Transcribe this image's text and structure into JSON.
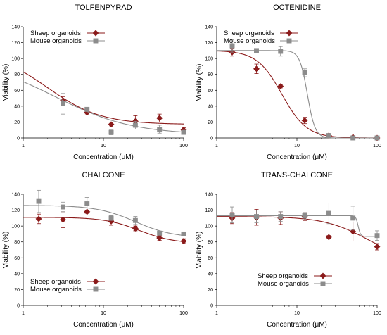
{
  "chart_data": [
    {
      "type": "scatter",
      "title": "TOLFENPYRAD",
      "xlabel": "Concentration (μM)",
      "ylabel": "Viability (%)",
      "xscale": "log",
      "xlim": [
        1,
        100
      ],
      "ylim": [
        0,
        140
      ],
      "xticks": [
        "1",
        "10",
        "100"
      ],
      "yticks": [
        "0",
        "20",
        "40",
        "60",
        "80",
        "100",
        "120",
        "140"
      ],
      "legend": {
        "position": "top-left",
        "entries": [
          "Sheep organoids",
          "Mouse organoids"
        ]
      },
      "series": [
        {
          "name": "Sheep organoids",
          "color": "#8b1a1a",
          "marker": "diamond",
          "x": [
            3.13,
            6.25,
            12.5,
            25,
            50,
            100
          ],
          "y": [
            47,
            32,
            17,
            21,
            25,
            10
          ],
          "err": [
            5,
            3,
            3,
            7,
            5,
            3
          ],
          "curve": {
            "top": 110,
            "bottom": 17,
            "ec50": 2.0,
            "hill": 1.3
          }
        },
        {
          "name": "Mouse organoids",
          "color": "#8c8c8c",
          "marker": "square",
          "x": [
            3.13,
            6.25,
            12.5,
            25,
            50,
            100
          ],
          "y": [
            43,
            36,
            7,
            16,
            11,
            7
          ],
          "err": [
            13,
            2,
            3,
            5,
            5,
            2
          ],
          "curve": {
            "top": 100,
            "bottom": 4,
            "ec50": 2.5,
            "hill": 0.9
          }
        }
      ]
    },
    {
      "type": "scatter",
      "title": "OCTENIDINE",
      "xlabel": "Concentration (μM)",
      "ylabel": "Viability (%)",
      "xscale": "log",
      "xlim": [
        1,
        100
      ],
      "ylim": [
        0,
        140
      ],
      "xticks": [
        "1",
        "10",
        "100"
      ],
      "yticks": [
        "0",
        "20",
        "40",
        "60",
        "80",
        "100",
        "120",
        "140"
      ],
      "legend": {
        "position": "top-left",
        "entries": [
          "Sheep organoids",
          "Mouse organoids"
        ]
      },
      "series": [
        {
          "name": "Sheep organoids",
          "color": "#8b1a1a",
          "marker": "diamond",
          "x": [
            1.56,
            3.13,
            6.25,
            12.5,
            25,
            50,
            100
          ],
          "y": [
            108,
            87,
            65,
            22,
            3,
            1,
            0
          ],
          "err": [
            5,
            6,
            2,
            4,
            2,
            1,
            1
          ],
          "curve": {
            "top": 110,
            "bottom": 0,
            "ec50": 6.5,
            "hill": 2.8
          }
        },
        {
          "name": "Mouse organoids",
          "color": "#8c8c8c",
          "marker": "square",
          "x": [
            1.56,
            3.13,
            6.25,
            12.5,
            25,
            50,
            100
          ],
          "y": [
            116,
            110,
            109,
            82,
            3,
            0,
            0
          ],
          "err": [
            8,
            2,
            6,
            5,
            1,
            1,
            1
          ],
          "curve": {
            "top": 110,
            "bottom": 0,
            "ec50": 13.5,
            "hill": 9
          }
        }
      ]
    },
    {
      "type": "scatter",
      "title": "CHALCONE",
      "xlabel": "Concentration (μM)",
      "ylabel": "Viability (%)",
      "xscale": "log",
      "xlim": [
        1,
        100
      ],
      "ylim": [
        0,
        140
      ],
      "xticks": [
        "1",
        "10",
        "100"
      ],
      "yticks": [
        "0",
        "20",
        "40",
        "60",
        "80",
        "100",
        "120",
        "140"
      ],
      "legend": {
        "position": "bottom-left",
        "entries": [
          "Sheep organoids",
          "Mouse organoids"
        ]
      },
      "series": [
        {
          "name": "Sheep organoids",
          "color": "#8b1a1a",
          "marker": "diamond",
          "x": [
            1.56,
            3.13,
            6.25,
            12.5,
            25,
            50,
            100
          ],
          "y": [
            109,
            108,
            118,
            106,
            97,
            85,
            81
          ],
          "err": [
            6,
            10,
            2,
            5,
            3,
            3,
            3
          ],
          "curve": {
            "top": 111,
            "bottom": 78,
            "ec50": 28,
            "hill": 2.0
          }
        },
        {
          "name": "Mouse organoids",
          "color": "#8c8c8c",
          "marker": "square",
          "x": [
            1.56,
            3.13,
            6.25,
            12.5,
            25,
            50,
            100
          ],
          "y": [
            131,
            124,
            128,
            110,
            107,
            91,
            90
          ],
          "err": [
            14,
            6,
            8,
            3,
            5,
            2,
            2
          ],
          "curve": {
            "top": 126,
            "bottom": 85,
            "ec50": 25,
            "hill": 1.8
          }
        }
      ]
    },
    {
      "type": "scatter",
      "title": "TRANS-CHALCONE",
      "xlabel": "Concentration (μM)",
      "ylabel": "Viability (%)",
      "xscale": "log",
      "xlim": [
        1,
        100
      ],
      "ylim": [
        0,
        140
      ],
      "xticks": [
        "1",
        "10",
        "100"
      ],
      "yticks": [
        "0",
        "20",
        "40",
        "60",
        "80",
        "100",
        "120",
        "140"
      ],
      "legend": {
        "position": "bottom-left",
        "entries": [
          "Sheep organoids",
          "Mouse organoids"
        ]
      },
      "series": [
        {
          "name": "Sheep organoids",
          "color": "#8b1a1a",
          "marker": "diamond",
          "x": [
            1.56,
            3.13,
            6.25,
            12.5,
            25,
            50,
            100
          ],
          "y": [
            110,
            111,
            110,
            112,
            86,
            93,
            74
          ],
          "err": [
            7,
            10,
            8,
            5,
            2,
            12,
            4
          ],
          "curve": {
            "top": 112,
            "bottom": 55,
            "ec50": 75,
            "hill": 1.6
          }
        },
        {
          "name": "Mouse organoids",
          "color": "#8c8c8c",
          "marker": "square",
          "x": [
            1.56,
            3.13,
            6.25,
            12.5,
            25,
            50,
            100
          ],
          "y": [
            114,
            112,
            112,
            113,
            116,
            110,
            88
          ],
          "err": [
            10,
            8,
            6,
            4,
            13,
            15,
            6
          ],
          "curve": {
            "top": 113,
            "bottom": 87,
            "ec50": 58,
            "hill": 30
          }
        }
      ]
    }
  ]
}
